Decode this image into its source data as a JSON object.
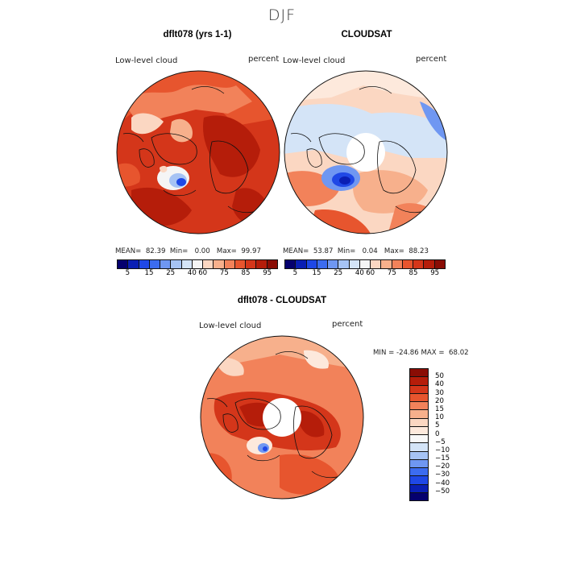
{
  "season": "DJF",
  "panels": [
    {
      "title": "dflt078 (yrs 1-1)",
      "variable": "Low-level cloud",
      "units": "percent",
      "stats": {
        "mean_label": "MEAN=",
        "mean": "82.39",
        "min_label": "Min=",
        "min": "0.00",
        "max_label": "Max=",
        "max": "99.97"
      }
    },
    {
      "title": "CLOUDSAT",
      "variable": "Low-level cloud",
      "units": "percent",
      "stats": {
        "mean_label": "MEAN=",
        "mean": "53.87",
        "min_label": "Min=",
        "min": "0.04",
        "max_label": "Max=",
        "max": "88.23"
      }
    }
  ],
  "abs_colorbar": {
    "colors": [
      "#05006e",
      "#0a1fb4",
      "#1f48e6",
      "#3c6cf0",
      "#6f97f2",
      "#a6c3f4",
      "#d4e4f7",
      "#f5f5f5",
      "#fbd7c2",
      "#f7b08c",
      "#f2825a",
      "#e7552e",
      "#d4361a",
      "#b51d0a",
      "#8a0d05"
    ],
    "ticks": [
      "5",
      "15",
      "25",
      "40",
      "60",
      "75",
      "85",
      "95"
    ]
  },
  "diff": {
    "title": "dflt078 - CLOUDSAT",
    "variable": "Low-level cloud",
    "units": "percent",
    "range_text": "MIN = -24.86 MAX =  68.02",
    "colorbar": {
      "colors": [
        "#8a0d05",
        "#b51d0a",
        "#d4361a",
        "#e7552e",
        "#f2825a",
        "#f7b08c",
        "#fbd7c2",
        "#fde9dc",
        "#f8f8f8",
        "#d4e4f7",
        "#a6c3f4",
        "#6f97f2",
        "#3c6cf0",
        "#1f48e6",
        "#0a1fb4",
        "#05006e"
      ],
      "ticks": [
        "50",
        "40",
        "30",
        "20",
        "15",
        "10",
        "5",
        "0",
        "−5",
        "−10",
        "−15",
        "−20",
        "−30",
        "−40",
        "−50"
      ]
    }
  }
}
